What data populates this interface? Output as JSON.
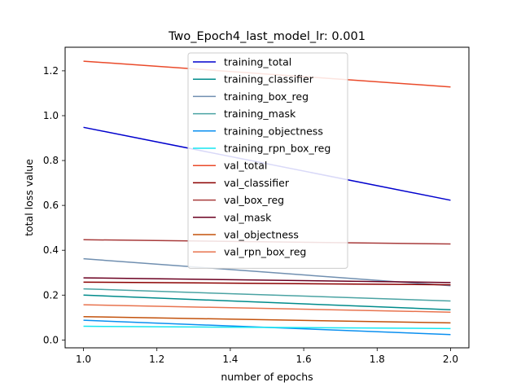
{
  "chart_data": {
    "type": "line",
    "title": "Two_Epoch4_last_model_lr: 0.001",
    "xlabel": "number of epochs",
    "ylabel": "total loss value",
    "xlim": [
      0.95,
      2.05
    ],
    "ylim": [
      -0.035,
      1.305
    ],
    "xticks": [
      "1.0",
      "1.2",
      "1.4",
      "1.6",
      "1.8",
      "2.0"
    ],
    "yticks": [
      "0.0",
      "0.2",
      "0.4",
      "0.6",
      "0.8",
      "1.0",
      "1.2"
    ],
    "grid": false,
    "legend_position": "upper-center",
    "x": [
      1.0,
      2.0
    ],
    "series": [
      {
        "name": "training_total",
        "color": "#0000cd",
        "values": [
          0.948,
          0.623
        ]
      },
      {
        "name": "training_classifier",
        "color": "#008b8b",
        "values": [
          0.2,
          0.135
        ]
      },
      {
        "name": "training_box_reg",
        "color": "#708fb0",
        "values": [
          0.362,
          0.242
        ]
      },
      {
        "name": "training_mask",
        "color": "#4aa3a3",
        "values": [
          0.228,
          0.174
        ]
      },
      {
        "name": "training_objectness",
        "color": "#0a8ff0",
        "values": [
          0.088,
          0.024
        ]
      },
      {
        "name": "training_rpn_box_reg",
        "color": "#16e6f0",
        "values": [
          0.061,
          0.051
        ]
      },
      {
        "name": "val_total",
        "color": "#ea4a2a",
        "values": [
          1.243,
          1.128
        ]
      },
      {
        "name": "val_classifier",
        "color": "#8b0000",
        "values": [
          0.258,
          0.246
        ]
      },
      {
        "name": "val_box_reg",
        "color": "#a83b3b",
        "values": [
          0.447,
          0.428
        ]
      },
      {
        "name": "val_mask",
        "color": "#6b0021",
        "values": [
          0.277,
          0.256
        ]
      },
      {
        "name": "val_objectness",
        "color": "#c3520c",
        "values": [
          0.104,
          0.076
        ]
      },
      {
        "name": "val_rpn_box_reg",
        "color": "#e8734e",
        "values": [
          0.157,
          0.124
        ]
      }
    ]
  }
}
